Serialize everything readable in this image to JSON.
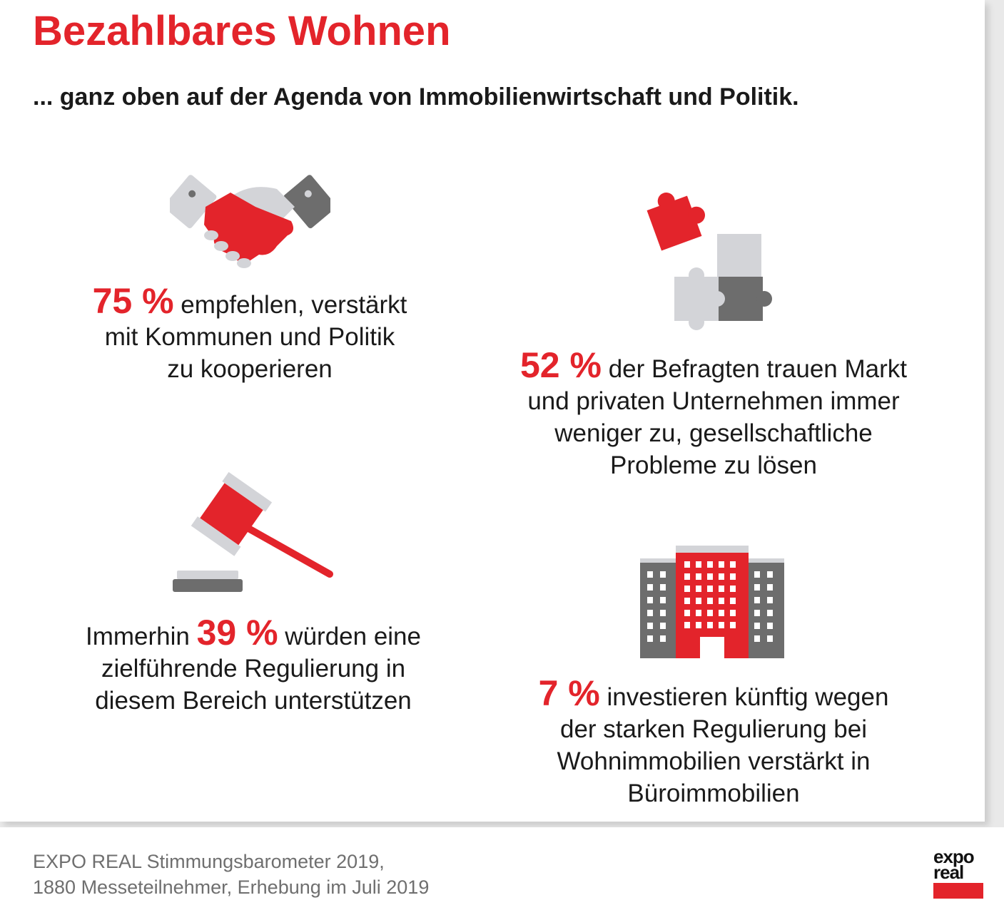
{
  "header": {
    "title": "Bezahlbares Wohnen",
    "subtitle": "... ganz oben auf der Agenda von Immobilienwirtschaft und Politik."
  },
  "stats": [
    {
      "icon": "handshake-icon",
      "value": "75 %",
      "lines": [
        "empfehlen, verstärkt",
        "mit Kommunen und Politik",
        "zu kooperieren"
      ]
    },
    {
      "icon": "puzzle-icon",
      "value": "52 %",
      "lines": [
        "der Befragten trauen Markt",
        "und privaten Unternehmen immer",
        "weniger zu, gesellschaftliche",
        "Probleme zu lösen"
      ]
    },
    {
      "icon": "gavel-icon",
      "prefix": "Immerhin",
      "value": "39 %",
      "lines": [
        "würden eine",
        "zielführende Regulierung in",
        "diesem Bereich unterstützen"
      ]
    },
    {
      "icon": "office-building-icon",
      "value": "7 %",
      "lines": [
        "investieren künftig wegen",
        "der starken Regulierung bei",
        "Wohnimmobilien verstärkt in",
        "Büroimmobilien"
      ]
    }
  ],
  "footer": {
    "source_line1_brand": "EXPO REAL",
    "source_line1_rest": " Stimmungsbarometer 2019,",
    "source_line2": "1880 Messeteilnehmer, Erhebung im Juli 2019",
    "logo_line1": "expo",
    "logo_line2": "real"
  },
  "colors": {
    "accent": "#e3242b",
    "dark_gray": "#6d6d6d",
    "light_gray": "#d3d4d8"
  }
}
